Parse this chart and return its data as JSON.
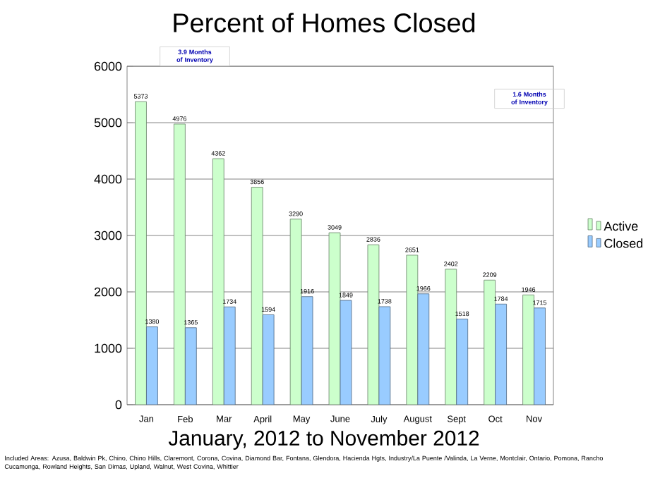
{
  "chart_data": {
    "type": "bar",
    "title": "Percent of Homes Closed",
    "subtitle": "January, 2012 to November 2012",
    "categories": [
      "Jan",
      "Feb",
      "Mar",
      "April",
      "May",
      "June",
      "July",
      "August",
      "Sept",
      "Oct",
      "Nov"
    ],
    "series": [
      {
        "name": "Active",
        "color": "#ccffcc",
        "values": [
          5373,
          4976,
          4362,
          3856,
          3290,
          3049,
          2836,
          2651,
          2402,
          2209,
          1946
        ]
      },
      {
        "name": "Closed",
        "color": "#99ccff",
        "values": [
          1380,
          1365,
          1734,
          1594,
          1916,
          1849,
          1738,
          1966,
          1518,
          1784,
          1715
        ]
      }
    ],
    "ylim": [
      0,
      6000
    ],
    "yticks": [
      0,
      1000,
      2000,
      3000,
      4000,
      5000,
      6000
    ],
    "grid": "y",
    "legend": "right",
    "data_labels": true,
    "annotations": [
      "3.9 Months of Inventory",
      "1.6 Months of Inventory",
      "Included Areas: Azusa, Baldwin Pk, Chino, Chino Hills, Claremont, Corona, Covina, Diamond Bar, Fontana, Glendora, Hacienda Hgts, Industry/La Puente /Valinda, La Verne, Montclair, Ontario, Pomona, Rancho Cucamonga, Rowland Heights, San Dimas, Upland, Walnut, West Covina, Whittier"
    ]
  }
}
